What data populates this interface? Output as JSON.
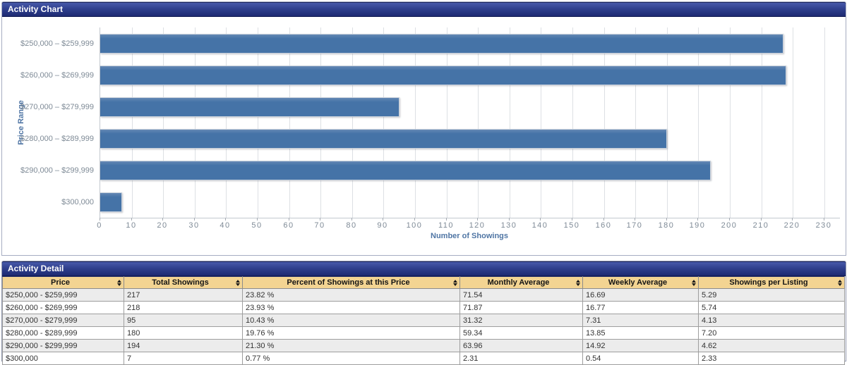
{
  "colors": {
    "header_gradient_top": "#4A5DAD",
    "header_gradient_bottom": "#1D2A72",
    "bar_fill": "#4573A7",
    "table_header_bg": "#F3D492",
    "row_alt_bg": "#ECECEC",
    "grid_line": "#DDE0E4",
    "axis_title": "#4F75A4",
    "tick_label": "#7E8A96"
  },
  "chart_panel": {
    "title": "Activity Chart"
  },
  "chart_data": {
    "type": "bar",
    "orientation": "horizontal",
    "title": "Activity Chart",
    "categories": [
      "$250,000 – $259,999",
      "$260,000 – $269,999",
      "$270,000 – $279,999",
      "$280,000 – $289,999",
      "$290,000 – $299,999",
      "$300,000"
    ],
    "values": [
      217,
      218,
      95,
      180,
      194,
      7
    ],
    "xlabel": "Number of Showings",
    "ylabel": "Price Range",
    "xlim": [
      0,
      235
    ],
    "xtick_step": 10,
    "xtick_max": 230,
    "grid": true,
    "legend": false,
    "bar_color": "#4573A7"
  },
  "detail_panel": {
    "title": "Activity Detail",
    "columns": [
      {
        "label": "Price"
      },
      {
        "label": "Total Showings"
      },
      {
        "label": "Percent of Showings at this Price"
      },
      {
        "label": "Monthly Average"
      },
      {
        "label": "Weekly Average"
      },
      {
        "label": "Showings per Listing"
      }
    ],
    "rows": [
      [
        "$250,000 - $259,999",
        "217",
        "23.82 %",
        "71.54",
        "16.69",
        "5.29"
      ],
      [
        "$260,000 - $269,999",
        "218",
        "23.93 %",
        "71.87",
        "16.77",
        "5.74"
      ],
      [
        "$270,000 - $279,999",
        "95",
        "10.43 %",
        "31.32",
        "7.31",
        "4.13"
      ],
      [
        "$280,000 - $289,999",
        "180",
        "19.76 %",
        "59.34",
        "13.85",
        "7.20"
      ],
      [
        "$290,000 - $299,999",
        "194",
        "21.30 %",
        "63.96",
        "14.92",
        "4.62"
      ],
      [
        "$300,000",
        "7",
        "0.77 %",
        "2.31",
        "0.54",
        "2.33"
      ]
    ]
  }
}
